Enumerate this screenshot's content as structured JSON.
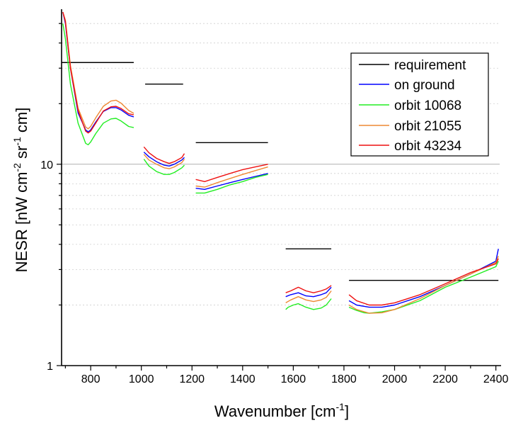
{
  "chart_data": {
    "type": "line",
    "title": "",
    "xlabel_main": "Wavenumber [cm",
    "xlabel_sup": "-1",
    "xlabel_end": "]",
    "ylabel_main": "NESR [nW cm",
    "ylabel_sup1": "-2",
    "ylabel_mid": " sr",
    "ylabel_sup2": "-1",
    "ylabel_end": " cm]",
    "xlim": [
      685,
      2415
    ],
    "ylim": [
      1,
      57
    ],
    "yscale": "log",
    "grid": "minor horizontal gridlines dotted, major gridline at 10",
    "legend_position": "top-right",
    "x_ticks": [
      800,
      1000,
      1200,
      1400,
      1600,
      1800,
      2000,
      2200,
      2400
    ],
    "y_ticks": [
      1,
      10
    ],
    "colors": {
      "requirement": "#000000",
      "on ground": "#0000ff",
      "orbit 10068": "#22ee22",
      "orbit 21055": "#ee8833",
      "orbit 43234": "#ee1111"
    },
    "legend": [
      "requirement",
      "on ground",
      "orbit 10068",
      "orbit 21055",
      "orbit 43234"
    ],
    "requirement": [
      {
        "x": [
          685,
          970
        ],
        "y": 32
      },
      {
        "x": [
          1015,
          1165
        ],
        "y": 25
      },
      {
        "x": [
          1215,
          1500
        ],
        "y": 12.8
      },
      {
        "x": [
          1570,
          1750
        ],
        "y": 3.8
      },
      {
        "x": [
          1820,
          2410
        ],
        "y": 2.65
      }
    ],
    "series": [
      {
        "name": "on ground",
        "bands": [
          {
            "x": [
              690,
              700,
              720,
              750,
              780,
              790,
              800,
              820,
              850,
              880,
              900,
              920,
              950,
              970
            ],
            "y": [
              57,
              50,
              30,
              18,
              14.8,
              14.5,
              14.8,
              16.2,
              18.3,
              19.1,
              19.1,
              18.6,
              17.5,
              17.2
            ]
          },
          {
            "x": [
              1010,
              1030,
              1060,
              1090,
              1110,
              1130,
              1160,
              1170
            ],
            "y": [
              11.5,
              10.9,
              10.3,
              9.9,
              9.8,
              10.0,
              10.5,
              10.8
            ]
          },
          {
            "x": [
              1215,
              1250,
              1300,
              1350,
              1400,
              1450,
              1500
            ],
            "y": [
              7.6,
              7.5,
              7.8,
              8.1,
              8.4,
              8.7,
              9.0
            ]
          },
          {
            "x": [
              1570,
              1590,
              1620,
              1650,
              1680,
              1710,
              1730,
              1750
            ],
            "y": [
              2.2,
              2.25,
              2.3,
              2.22,
              2.2,
              2.25,
              2.3,
              2.45
            ]
          },
          {
            "x": [
              1820,
              1850,
              1900,
              1950,
              2000,
              2100,
              2200,
              2300,
              2400,
              2410
            ],
            "y": [
              2.1,
              2.0,
              1.95,
              1.95,
              2.0,
              2.2,
              2.5,
              2.85,
              3.3,
              3.8
            ]
          }
        ]
      },
      {
        "name": "orbit 10068",
        "bands": [
          {
            "x": [
              690,
              700,
              720,
              750,
              780,
              790,
              800,
              820,
              850,
              880,
              900,
              920,
              950,
              970
            ],
            "y": [
              50,
              42,
              25,
              16,
              12.7,
              12.5,
              12.9,
              14.2,
              16.0,
              16.8,
              16.9,
              16.4,
              15.4,
              15.2
            ]
          },
          {
            "x": [
              1010,
              1030,
              1060,
              1090,
              1110,
              1130,
              1160,
              1170
            ],
            "y": [
              10.6,
              9.8,
              9.2,
              8.9,
              8.9,
              9.1,
              9.6,
              9.9
            ]
          },
          {
            "x": [
              1215,
              1250,
              1300,
              1350,
              1400,
              1450,
              1500
            ],
            "y": [
              7.2,
              7.2,
              7.5,
              7.9,
              8.2,
              8.6,
              8.9
            ]
          },
          {
            "x": [
              1570,
              1580,
              1600,
              1620,
              1650,
              1680,
              1710,
              1730,
              1750
            ],
            "y": [
              1.9,
              1.95,
              2.0,
              2.03,
              1.95,
              1.9,
              1.93,
              2.0,
              2.15
            ]
          },
          {
            "x": [
              1820,
              1850,
              1880,
              1900,
              1950,
              2000,
              2100,
              2200,
              2300,
              2400,
              2410
            ],
            "y": [
              1.95,
              1.88,
              1.83,
              1.82,
              1.85,
              1.9,
              2.1,
              2.45,
              2.75,
              3.1,
              3.3
            ]
          }
        ]
      },
      {
        "name": "orbit 21055",
        "bands": [
          {
            "x": [
              690,
              700,
              720,
              750,
              780,
              790,
              800,
              820,
              850,
              880,
              900,
              920,
              950,
              970
            ],
            "y": [
              57,
              52,
              31,
              19,
              15.3,
              15.0,
              15.4,
              17.0,
              19.4,
              20.6,
              20.8,
              20.1,
              18.5,
              17.9
            ]
          },
          {
            "x": [
              1010,
              1030,
              1060,
              1090,
              1110,
              1130,
              1160,
              1170
            ],
            "y": [
              11.2,
              10.5,
              10.0,
              9.6,
              9.5,
              9.7,
              10.2,
              10.6
            ]
          },
          {
            "x": [
              1215,
              1250,
              1300,
              1350,
              1400,
              1450,
              1500
            ],
            "y": [
              7.8,
              7.7,
              8.1,
              8.5,
              8.9,
              9.3,
              9.7
            ]
          },
          {
            "x": [
              1570,
              1590,
              1620,
              1650,
              1680,
              1710,
              1730,
              1750
            ],
            "y": [
              2.05,
              2.12,
              2.2,
              2.12,
              2.08,
              2.12,
              2.18,
              2.35
            ]
          },
          {
            "x": [
              1820,
              1850,
              1900,
              1950,
              2000,
              2100,
              2200,
              2300,
              2400,
              2410
            ],
            "y": [
              2.0,
              1.9,
              1.82,
              1.83,
              1.9,
              2.15,
              2.5,
              2.85,
              3.25,
              3.5
            ]
          }
        ]
      },
      {
        "name": "orbit 43234",
        "bands": [
          {
            "x": [
              690,
              700,
              720,
              750,
              780,
              790,
              800,
              820,
              850,
              880,
              900,
              920,
              950,
              970
            ],
            "y": [
              57,
              51,
              30,
              18.5,
              14.6,
              14.3,
              14.6,
              16.0,
              18.4,
              19.3,
              19.4,
              18.9,
              17.8,
              17.6
            ]
          },
          {
            "x": [
              1010,
              1030,
              1060,
              1090,
              1110,
              1130,
              1160,
              1170
            ],
            "y": [
              12.2,
              11.4,
              10.7,
              10.3,
              10.1,
              10.3,
              10.8,
              11.3
            ]
          },
          {
            "x": [
              1215,
              1250,
              1300,
              1350,
              1400,
              1450,
              1500
            ],
            "y": [
              8.4,
              8.2,
              8.6,
              9.0,
              9.4,
              9.7,
              10.0
            ]
          },
          {
            "x": [
              1570,
              1590,
              1620,
              1650,
              1680,
              1710,
              1730,
              1750
            ],
            "y": [
              2.3,
              2.35,
              2.45,
              2.35,
              2.3,
              2.35,
              2.4,
              2.5
            ]
          },
          {
            "x": [
              1820,
              1850,
              1900,
              1950,
              2000,
              2100,
              2200,
              2300,
              2400,
              2410
            ],
            "y": [
              2.25,
              2.1,
              2.0,
              2.0,
              2.05,
              2.25,
              2.55,
              2.9,
              3.2,
              3.4
            ]
          }
        ]
      }
    ]
  }
}
